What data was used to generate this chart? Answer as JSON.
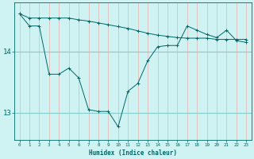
{
  "xlabel": "Humidex (Indice chaleur)",
  "background_color": "#cff2f2",
  "grid_color_v": "#e8b0b0",
  "grid_color_h": "#88cccc",
  "line_color": "#006868",
  "x_data": [
    0,
    1,
    2,
    3,
    4,
    5,
    6,
    7,
    8,
    9,
    10,
    11,
    12,
    13,
    14,
    15,
    16,
    17,
    18,
    19,
    20,
    21,
    22,
    23
  ],
  "line1": [
    14.62,
    14.55,
    14.55,
    14.55,
    14.55,
    14.55,
    14.52,
    14.5,
    14.47,
    14.44,
    14.41,
    14.38,
    14.34,
    14.3,
    14.27,
    14.25,
    14.23,
    14.22,
    14.22,
    14.22,
    14.2,
    14.2,
    14.2,
    14.2
  ],
  "line2": [
    14.62,
    14.42,
    14.42,
    13.63,
    13.63,
    13.73,
    13.57,
    13.05,
    13.02,
    13.02,
    12.77,
    13.35,
    13.48,
    13.85,
    14.08,
    14.1,
    14.1,
    14.42,
    14.35,
    14.28,
    14.23,
    14.35,
    14.18,
    14.15
  ],
  "ylim": [
    12.55,
    14.8
  ],
  "yticks": [
    13,
    14
  ],
  "xlim": [
    -0.5,
    23.5
  ],
  "figwidth": 3.2,
  "figheight": 2.0,
  "dpi": 100
}
